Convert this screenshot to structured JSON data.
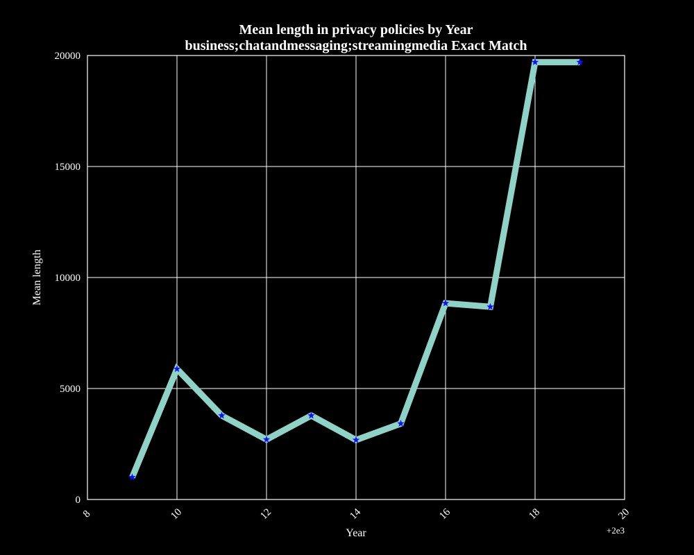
{
  "chart_data": {
    "type": "line",
    "title": [
      "Mean length in privacy policies by Year",
      "business;chatandmessaging;streamingmedia Exact Match"
    ],
    "xlabel": "Year",
    "ylabel": "Mean length",
    "x_offset_label": "+2e3",
    "xlim": [
      8,
      20
    ],
    "ylim": [
      0,
      20000
    ],
    "x_ticks": [
      8,
      10,
      12,
      14,
      16,
      18,
      20
    ],
    "y_ticks": [
      0,
      5000,
      10000,
      15000,
      20000
    ],
    "x_tick_rotation_deg": -45,
    "grid": true,
    "legend": "none",
    "series": [
      {
        "x": [
          9,
          10,
          11,
          12,
          13,
          14,
          15,
          16,
          17,
          18,
          19
        ],
        "values": [
          1000,
          5880,
          3780,
          2700,
          3780,
          2680,
          3420,
          8840,
          8680,
          19700,
          19700
        ],
        "marker": "star"
      }
    ],
    "colors": {
      "background": "#000000",
      "axes": "#ffffff",
      "grid": "#ffffff",
      "line": "#8fd3c6",
      "marker": "#1010ff"
    }
  }
}
